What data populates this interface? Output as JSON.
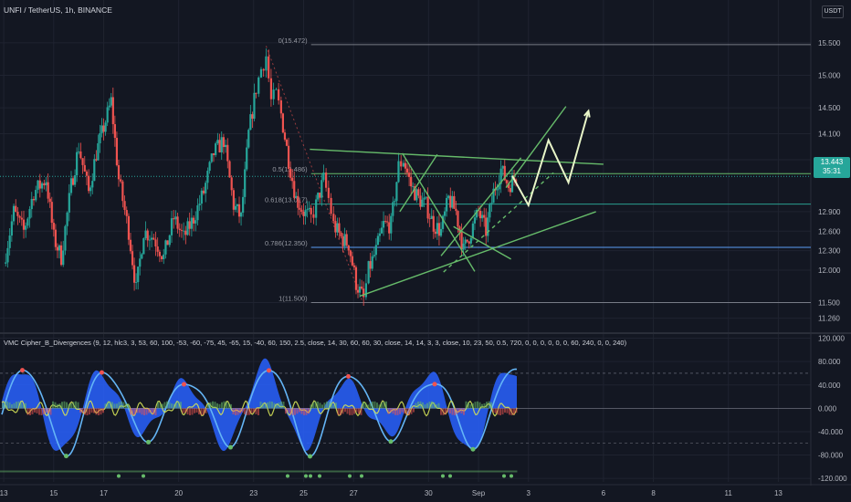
{
  "header": {
    "symbol_title": "UNFI / TetherUS, 1h, BINANCE",
    "currency_badge": "USDT"
  },
  "indicator": {
    "label": "VMC Cipher_B_Divergences (9, 12, hlc3, 3, 53, 60, 100, -53, -60, -75, 45, -65, 15, -40, 60, 150, 2.5, close, 14, 30, 60, 60, 30, close, 14, 14, 3, 3, close, 10, 23, 50, 0.5, 720, 0, 0, 0, 0, 0, 0, 60, 240, 0, 0, 240)"
  },
  "price_badge": {
    "price": "13.443",
    "countdown": "35:31"
  },
  "colors": {
    "background": "#131722",
    "grid": "#1f2330",
    "up": "#26a69a",
    "down": "#ef5350",
    "fib_gray": "#787b86",
    "fib_teal": "#2a9d8f",
    "fib_blue": "#5b9cf6",
    "pattern_green": "#66bb6a",
    "projection": "#e8f5c8",
    "wt1_fill": "#2962ff",
    "wt2_line": "#64b5f6",
    "badge_green": "#26a69a"
  },
  "chart_data": [
    {
      "type": "candlestick",
      "title": "UNFI / TetherUS, 1h, BINANCE",
      "ylim": [
        11.1,
        15.85
      ],
      "y_ticks": [
        "15.500",
        "15.000",
        "14.500",
        "14.100",
        "13.700",
        "13.443",
        "12.900",
        "12.600",
        "12.300",
        "12.000",
        "11.500",
        "11.260"
      ],
      "y_tick_values": [
        15.5,
        15.0,
        14.5,
        14.1,
        13.7,
        13.443,
        12.9,
        12.6,
        12.3,
        12.0,
        11.5,
        11.26
      ],
      "x_ticks": [
        {
          "label": "13",
          "day": 0
        },
        {
          "label": "15",
          "day": 2
        },
        {
          "label": "17",
          "day": 4
        },
        {
          "label": "20",
          "day": 7
        },
        {
          "label": "23",
          "day": 10
        },
        {
          "label": "25",
          "day": 12
        },
        {
          "label": "27",
          "day": 14
        },
        {
          "label": "30",
          "day": 17
        },
        {
          "label": "Sep",
          "day": 19
        },
        {
          "label": "3",
          "day": 21
        },
        {
          "label": "6",
          "day": 24
        },
        {
          "label": "8",
          "day": 26
        },
        {
          "label": "11",
          "day": 29
        },
        {
          "label": "13",
          "day": 31
        }
      ],
      "x_range_days": [
        -0.15,
        32.3
      ],
      "last_price": 13.443,
      "fibonacci": [
        {
          "label": "0(15.472)",
          "value": 15.472,
          "color": "#787b86"
        },
        {
          "label": "0.5(13.486)",
          "value": 13.486,
          "color": "#66bb6a"
        },
        {
          "label": "0.618(13.017)",
          "value": 13.017,
          "color": "#2a9d8f"
        },
        {
          "label": "0.786(12.350)",
          "value": 12.35,
          "color": "#5b9cf6"
        },
        {
          "label": "1(11.500)",
          "value": 11.5,
          "color": "#787b86"
        }
      ],
      "price_path": [
        [
          0,
          12.1
        ],
        [
          0.4,
          12.9
        ],
        [
          0.8,
          12.6
        ],
        [
          1.2,
          13.2
        ],
        [
          1.7,
          13.4
        ],
        [
          2.0,
          12.5
        ],
        [
          2.3,
          12.2
        ],
        [
          2.7,
          13.3
        ],
        [
          3.0,
          13.9
        ],
        [
          3.4,
          13.2
        ],
        [
          3.7,
          13.8
        ],
        [
          4.0,
          14.2
        ],
        [
          4.3,
          14.6
        ],
        [
          4.6,
          13.4
        ],
        [
          5.0,
          12.6
        ],
        [
          5.3,
          11.7
        ],
        [
          5.6,
          12.6
        ],
        [
          6.0,
          12.5
        ],
        [
          6.4,
          12.2
        ],
        [
          6.8,
          12.8
        ],
        [
          7.2,
          12.5
        ],
        [
          7.6,
          12.8
        ],
        [
          8.0,
          13.2
        ],
        [
          8.4,
          13.8
        ],
        [
          8.8,
          14.0
        ],
        [
          9.2,
          13.0
        ],
        [
          9.5,
          12.8
        ],
        [
          9.8,
          14.1
        ],
        [
          10.1,
          14.8
        ],
        [
          10.3,
          15.1
        ],
        [
          10.5,
          15.3
        ],
        [
          10.7,
          14.6
        ],
        [
          10.9,
          14.7
        ],
        [
          11.1,
          14.4
        ],
        [
          11.4,
          13.7
        ],
        [
          11.7,
          13.1
        ],
        [
          12.0,
          12.9
        ],
        [
          12.3,
          12.8
        ],
        [
          12.5,
          13.0
        ],
        [
          12.8,
          13.4
        ],
        [
          13.0,
          13.1
        ],
        [
          13.2,
          12.7
        ],
        [
          13.5,
          12.5
        ],
        [
          13.8,
          12.4
        ],
        [
          14.1,
          11.8
        ],
        [
          14.4,
          11.55
        ],
        [
          14.6,
          12.0
        ],
        [
          14.9,
          12.3
        ],
        [
          15.2,
          12.7
        ],
        [
          15.5,
          12.7
        ],
        [
          15.8,
          13.6
        ],
        [
          16.0,
          13.7
        ],
        [
          16.3,
          13.3
        ],
        [
          16.6,
          13.1
        ],
        [
          16.9,
          13.0
        ],
        [
          17.2,
          12.7
        ],
        [
          17.5,
          12.6
        ],
        [
          17.8,
          13.1
        ],
        [
          18.1,
          12.9
        ],
        [
          18.4,
          12.3
        ],
        [
          18.7,
          12.6
        ],
        [
          19.0,
          12.9
        ],
        [
          19.3,
          12.6
        ],
        [
          19.6,
          13.2
        ],
        [
          19.9,
          13.55
        ],
        [
          20.2,
          13.3
        ],
        [
          20.5,
          13.45
        ]
      ],
      "trend_lines": [
        {
          "name": "pattern-upper",
          "pts": [
            [
              12.25,
              13.86
            ],
            [
              24.0,
              13.63
            ]
          ],
          "color": "#66bb6a"
        },
        {
          "name": "pattern-lower",
          "pts": [
            [
              14.25,
              11.6
            ],
            [
              23.7,
              12.9
            ]
          ],
          "color": "#66bb6a"
        },
        {
          "name": "zigzag-1",
          "pts": [
            [
              15.85,
              12.9
            ],
            [
              17.35,
              13.78
            ]
          ],
          "color": "#66bb6a"
        },
        {
          "name": "zigzag-2",
          "pts": [
            [
              15.95,
              13.8
            ],
            [
              18.85,
              11.98
            ]
          ],
          "color": "#66bb6a"
        },
        {
          "name": "zigzag-3",
          "pts": [
            [
              17.5,
              12.22
            ],
            [
              20.7,
              13.73
            ]
          ],
          "color": "#66bb6a"
        },
        {
          "name": "zigzag-4",
          "pts": [
            [
              18.0,
              12.67
            ],
            [
              20.3,
              12.17
            ]
          ],
          "color": "#66bb6a"
        },
        {
          "name": "breakout-channel",
          "pts": [
            [
              20.1,
              13.27
            ],
            [
              22.5,
              14.52
            ]
          ],
          "color": "#66bb6a"
        },
        {
          "name": "dashed-support",
          "pts": [
            [
              17.6,
              11.97
            ],
            [
              22.0,
              13.5
            ]
          ],
          "color": "#66bb6a",
          "dashed": true
        }
      ],
      "projection": [
        [
          20.35,
          13.45
        ],
        [
          21.0,
          13.0
        ],
        [
          21.8,
          14.0
        ],
        [
          22.6,
          13.35
        ],
        [
          23.4,
          14.45
        ]
      ],
      "fib_anchor_dotted": [
        [
          10.5,
          15.45
        ],
        [
          14.35,
          11.52
        ]
      ]
    },
    {
      "type": "oscillator",
      "title": "VMC Cipher_B_Divergences",
      "ylim": [
        -126,
        124
      ],
      "y_ticks": [
        "120.000",
        "80.000",
        "40.000",
        "0.000",
        "-40.000",
        "-80.000",
        "-120.000"
      ],
      "y_tick_values": [
        120,
        80,
        40,
        0,
        -40,
        -80,
        -120
      ],
      "dashed_levels": [
        60,
        -60
      ]
    }
  ]
}
